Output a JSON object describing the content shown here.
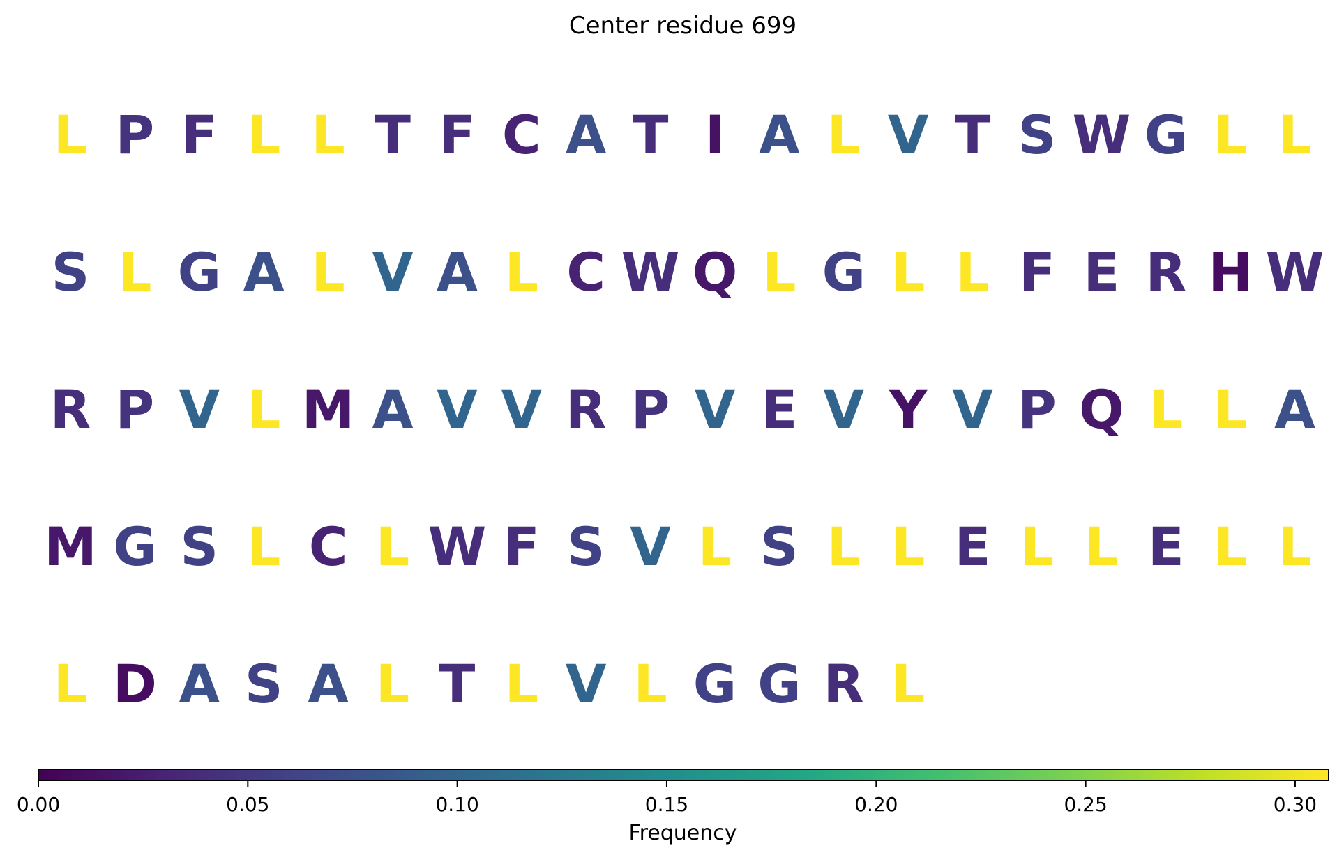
{
  "chart_data": {
    "type": "heatmap",
    "title": "Center residue 699",
    "colorbar": {
      "label": "Frequency",
      "range": [
        0,
        0.308
      ],
      "ticks": [
        "0.00",
        "0.05",
        "0.10",
        "0.15",
        "0.20",
        "0.25",
        "0.30"
      ],
      "tick_values": [
        0,
        0.05,
        0.1,
        0.15,
        0.2,
        0.25,
        0.3
      ],
      "colormap": "viridis"
    },
    "columns_per_row": 20,
    "residues": [
      {
        "aa": "L",
        "freq": 0.308
      },
      {
        "aa": "P",
        "freq": 0.045
      },
      {
        "aa": "F",
        "freq": 0.04
      },
      {
        "aa": "L",
        "freq": 0.308
      },
      {
        "aa": "L",
        "freq": 0.308
      },
      {
        "aa": "T",
        "freq": 0.04
      },
      {
        "aa": "F",
        "freq": 0.04
      },
      {
        "aa": "C",
        "freq": 0.03
      },
      {
        "aa": "A",
        "freq": 0.075
      },
      {
        "aa": "T",
        "freq": 0.04
      },
      {
        "aa": "I",
        "freq": 0.015
      },
      {
        "aa": "A",
        "freq": 0.075
      },
      {
        "aa": "L",
        "freq": 0.308
      },
      {
        "aa": "V",
        "freq": 0.1
      },
      {
        "aa": "T",
        "freq": 0.04
      },
      {
        "aa": "S",
        "freq": 0.06
      },
      {
        "aa": "W",
        "freq": 0.04
      },
      {
        "aa": "G",
        "freq": 0.06
      },
      {
        "aa": "L",
        "freq": 0.308
      },
      {
        "aa": "L",
        "freq": 0.308
      },
      {
        "aa": "S",
        "freq": 0.06
      },
      {
        "aa": "L",
        "freq": 0.308
      },
      {
        "aa": "G",
        "freq": 0.06
      },
      {
        "aa": "A",
        "freq": 0.075
      },
      {
        "aa": "L",
        "freq": 0.308
      },
      {
        "aa": "V",
        "freq": 0.1
      },
      {
        "aa": "A",
        "freq": 0.075
      },
      {
        "aa": "L",
        "freq": 0.308
      },
      {
        "aa": "C",
        "freq": 0.03
      },
      {
        "aa": "W",
        "freq": 0.04
      },
      {
        "aa": "Q",
        "freq": 0.02
      },
      {
        "aa": "L",
        "freq": 0.308
      },
      {
        "aa": "G",
        "freq": 0.06
      },
      {
        "aa": "L",
        "freq": 0.308
      },
      {
        "aa": "L",
        "freq": 0.308
      },
      {
        "aa": "F",
        "freq": 0.04
      },
      {
        "aa": "E",
        "freq": 0.04
      },
      {
        "aa": "R",
        "freq": 0.04
      },
      {
        "aa": "H",
        "freq": 0.01
      },
      {
        "aa": "W",
        "freq": 0.04
      },
      {
        "aa": "R",
        "freq": 0.04
      },
      {
        "aa": "P",
        "freq": 0.045
      },
      {
        "aa": "V",
        "freq": 0.1
      },
      {
        "aa": "L",
        "freq": 0.308
      },
      {
        "aa": "M",
        "freq": 0.02
      },
      {
        "aa": "A",
        "freq": 0.075
      },
      {
        "aa": "V",
        "freq": 0.1
      },
      {
        "aa": "V",
        "freq": 0.1
      },
      {
        "aa": "R",
        "freq": 0.04
      },
      {
        "aa": "P",
        "freq": 0.045
      },
      {
        "aa": "V",
        "freq": 0.1
      },
      {
        "aa": "E",
        "freq": 0.04
      },
      {
        "aa": "V",
        "freq": 0.1
      },
      {
        "aa": "Y",
        "freq": 0.015
      },
      {
        "aa": "V",
        "freq": 0.1
      },
      {
        "aa": "P",
        "freq": 0.045
      },
      {
        "aa": "Q",
        "freq": 0.02
      },
      {
        "aa": "L",
        "freq": 0.308
      },
      {
        "aa": "L",
        "freq": 0.308
      },
      {
        "aa": "A",
        "freq": 0.075
      },
      {
        "aa": "M",
        "freq": 0.02
      },
      {
        "aa": "G",
        "freq": 0.06
      },
      {
        "aa": "S",
        "freq": 0.06
      },
      {
        "aa": "L",
        "freq": 0.308
      },
      {
        "aa": "C",
        "freq": 0.03
      },
      {
        "aa": "L",
        "freq": 0.308
      },
      {
        "aa": "W",
        "freq": 0.04
      },
      {
        "aa": "F",
        "freq": 0.04
      },
      {
        "aa": "S",
        "freq": 0.06
      },
      {
        "aa": "V",
        "freq": 0.1
      },
      {
        "aa": "L",
        "freq": 0.308
      },
      {
        "aa": "S",
        "freq": 0.06
      },
      {
        "aa": "L",
        "freq": 0.308
      },
      {
        "aa": "L",
        "freq": 0.308
      },
      {
        "aa": "E",
        "freq": 0.04
      },
      {
        "aa": "L",
        "freq": 0.308
      },
      {
        "aa": "L",
        "freq": 0.308
      },
      {
        "aa": "E",
        "freq": 0.04
      },
      {
        "aa": "L",
        "freq": 0.308
      },
      {
        "aa": "L",
        "freq": 0.308
      },
      {
        "aa": "L",
        "freq": 0.308
      },
      {
        "aa": "D",
        "freq": 0.01
      },
      {
        "aa": "A",
        "freq": 0.075
      },
      {
        "aa": "S",
        "freq": 0.06
      },
      {
        "aa": "A",
        "freq": 0.075
      },
      {
        "aa": "L",
        "freq": 0.308
      },
      {
        "aa": "T",
        "freq": 0.04
      },
      {
        "aa": "L",
        "freq": 0.308
      },
      {
        "aa": "V",
        "freq": 0.1
      },
      {
        "aa": "L",
        "freq": 0.308
      },
      {
        "aa": "G",
        "freq": 0.06
      },
      {
        "aa": "G",
        "freq": 0.06
      },
      {
        "aa": "R",
        "freq": 0.04
      },
      {
        "aa": "L",
        "freq": 0.308
      }
    ]
  }
}
